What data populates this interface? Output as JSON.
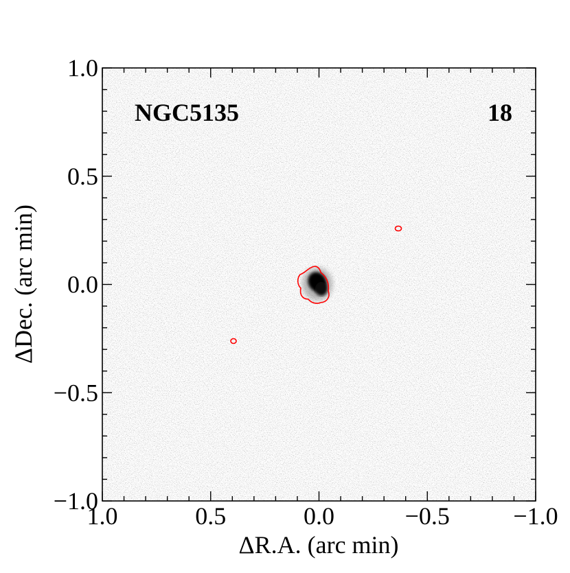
{
  "chart_data": {
    "type": "image",
    "title": "NGC5135",
    "annotation": "18",
    "xlabel": "ΔR.A. (arc min)",
    "ylabel": "ΔDec. (arc min)",
    "xlim": [
      1,
      -1
    ],
    "ylim": [
      -1,
      1
    ],
    "xticks": [
      {
        "value": 1,
        "label": "1.0"
      },
      {
        "value": 0.5,
        "label": "0.5"
      },
      {
        "value": 0,
        "label": "0.0"
      },
      {
        "value": -0.5,
        "label": "−0.5"
      },
      {
        "value": -1,
        "label": "−1.0"
      }
    ],
    "yticks": [
      {
        "value": -1,
        "label": "−1.0"
      },
      {
        "value": -0.5,
        "label": "−0.5"
      },
      {
        "value": 0,
        "label": "0.0"
      },
      {
        "value": 0.5,
        "label": "0.5"
      },
      {
        "value": 1,
        "label": "1.0"
      }
    ],
    "contour_color": "#ff0000"
  }
}
